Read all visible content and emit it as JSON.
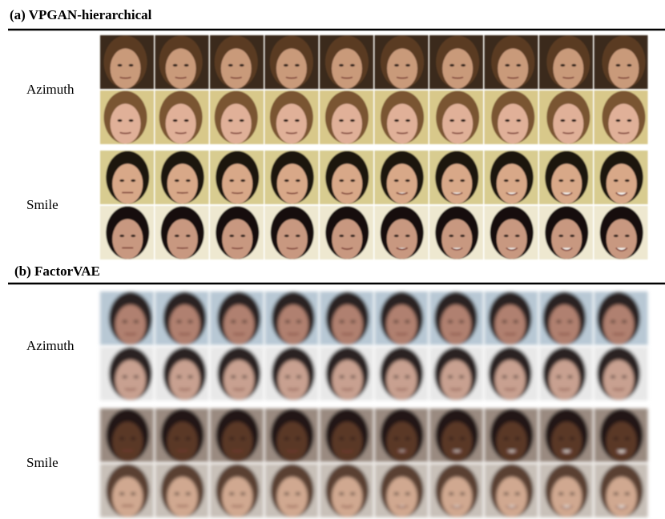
{
  "sections": [
    {
      "title": "(a) VPGAN-hierarchical",
      "rows": [
        {
          "label": "Azimuth"
        },
        {
          "label": "Smile"
        }
      ]
    },
    {
      "title": "(b) FactorVAE",
      "rows": [
        {
          "label": "Azimuth"
        },
        {
          "label": "Smile"
        }
      ]
    }
  ]
}
